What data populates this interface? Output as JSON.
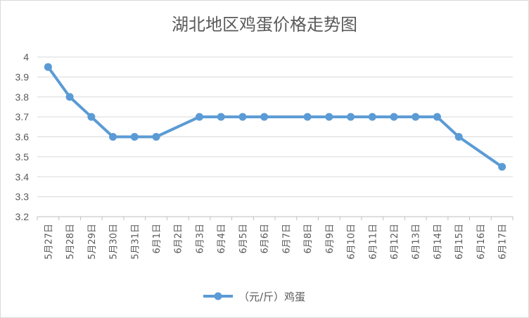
{
  "chart_data": {
    "type": "line",
    "title": "湖北地区鸡蛋价格走势图",
    "xlabel": "",
    "ylabel": "",
    "categories": [
      "5月27日",
      "5月28日",
      "5月29日",
      "5月30日",
      "5月31日",
      "6月1日",
      "6月2日",
      "6月3日",
      "6月4日",
      "6月5日",
      "6月6日",
      "6月7日",
      "6月8日",
      "6月9日",
      "6月10日",
      "6月11日",
      "6月12日",
      "6月13日",
      "6月14日",
      "6月15日",
      "6月16日",
      "6月17日"
    ],
    "yticks": [
      "3.2",
      "3.3",
      "3.4",
      "3.5",
      "3.6",
      "3.7",
      "3.8",
      "3.9",
      "4"
    ],
    "ylim": [
      3.2,
      4.0
    ],
    "grid": true,
    "legend_position": "bottom",
    "series": [
      {
        "name": "（元/斤）鸡蛋",
        "color": "#5b9bd5",
        "values": [
          3.95,
          3.8,
          3.7,
          3.6,
          3.6,
          3.6,
          null,
          3.7,
          3.7,
          3.7,
          3.7,
          null,
          3.7,
          3.7,
          3.7,
          3.7,
          3.7,
          3.7,
          3.7,
          3.6,
          null,
          3.45
        ]
      }
    ]
  }
}
